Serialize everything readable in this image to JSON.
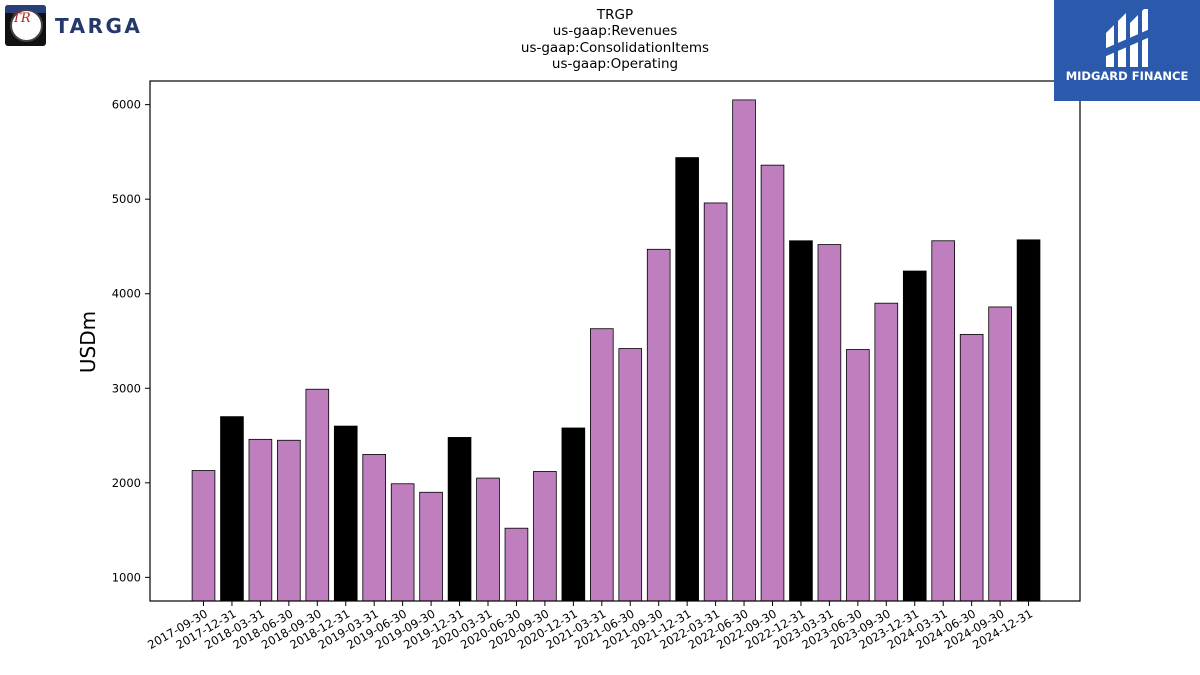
{
  "brand": {
    "company_logo_text": "TARGA",
    "company_logo_monogram": "TR",
    "provider_logo_text": "MIDGARD FINANCE"
  },
  "colors": {
    "bar_default": "#bf7fbf",
    "bar_highlight": "#000000",
    "provider_blue": "#2b5aad",
    "targa_navy": "#25386b"
  },
  "chart_data": {
    "type": "bar",
    "title_lines": [
      "TRGP",
      "us-gaap:Revenues",
      "us-gaap:ConsolidationItems",
      "us-gaap:Operating"
    ],
    "xlabel": "",
    "ylabel": "USDm",
    "ylim": [
      750,
      6250
    ],
    "yticks": [
      1000,
      2000,
      3000,
      4000,
      5000,
      6000
    ],
    "grid": false,
    "categories": [
      "2017-09-30",
      "2017-12-31",
      "2018-03-31",
      "2018-06-30",
      "2018-09-30",
      "2018-12-31",
      "2019-03-31",
      "2019-06-30",
      "2019-09-30",
      "2019-12-31",
      "2020-03-31",
      "2020-06-30",
      "2020-09-30",
      "2020-12-31",
      "2021-03-31",
      "2021-06-30",
      "2021-09-30",
      "2021-12-31",
      "2022-03-31",
      "2022-06-30",
      "2022-09-30",
      "2022-12-31",
      "2023-03-31",
      "2023-06-30",
      "2023-09-30",
      "2023-12-31",
      "2024-03-31",
      "2024-06-30",
      "2024-09-30",
      "2024-12-31"
    ],
    "values": [
      2130,
      2700,
      2460,
      2450,
      2990,
      2600,
      2300,
      1990,
      1900,
      2480,
      2050,
      1520,
      2120,
      2580,
      3630,
      3420,
      4470,
      5440,
      4960,
      6050,
      5360,
      4560,
      4520,
      3410,
      3900,
      4240,
      4560,
      3570,
      3860,
      4570
    ],
    "highlight": [
      false,
      true,
      false,
      false,
      false,
      true,
      false,
      false,
      false,
      true,
      false,
      false,
      false,
      true,
      false,
      false,
      false,
      true,
      false,
      false,
      false,
      true,
      false,
      false,
      false,
      true,
      false,
      false,
      false,
      true
    ]
  }
}
